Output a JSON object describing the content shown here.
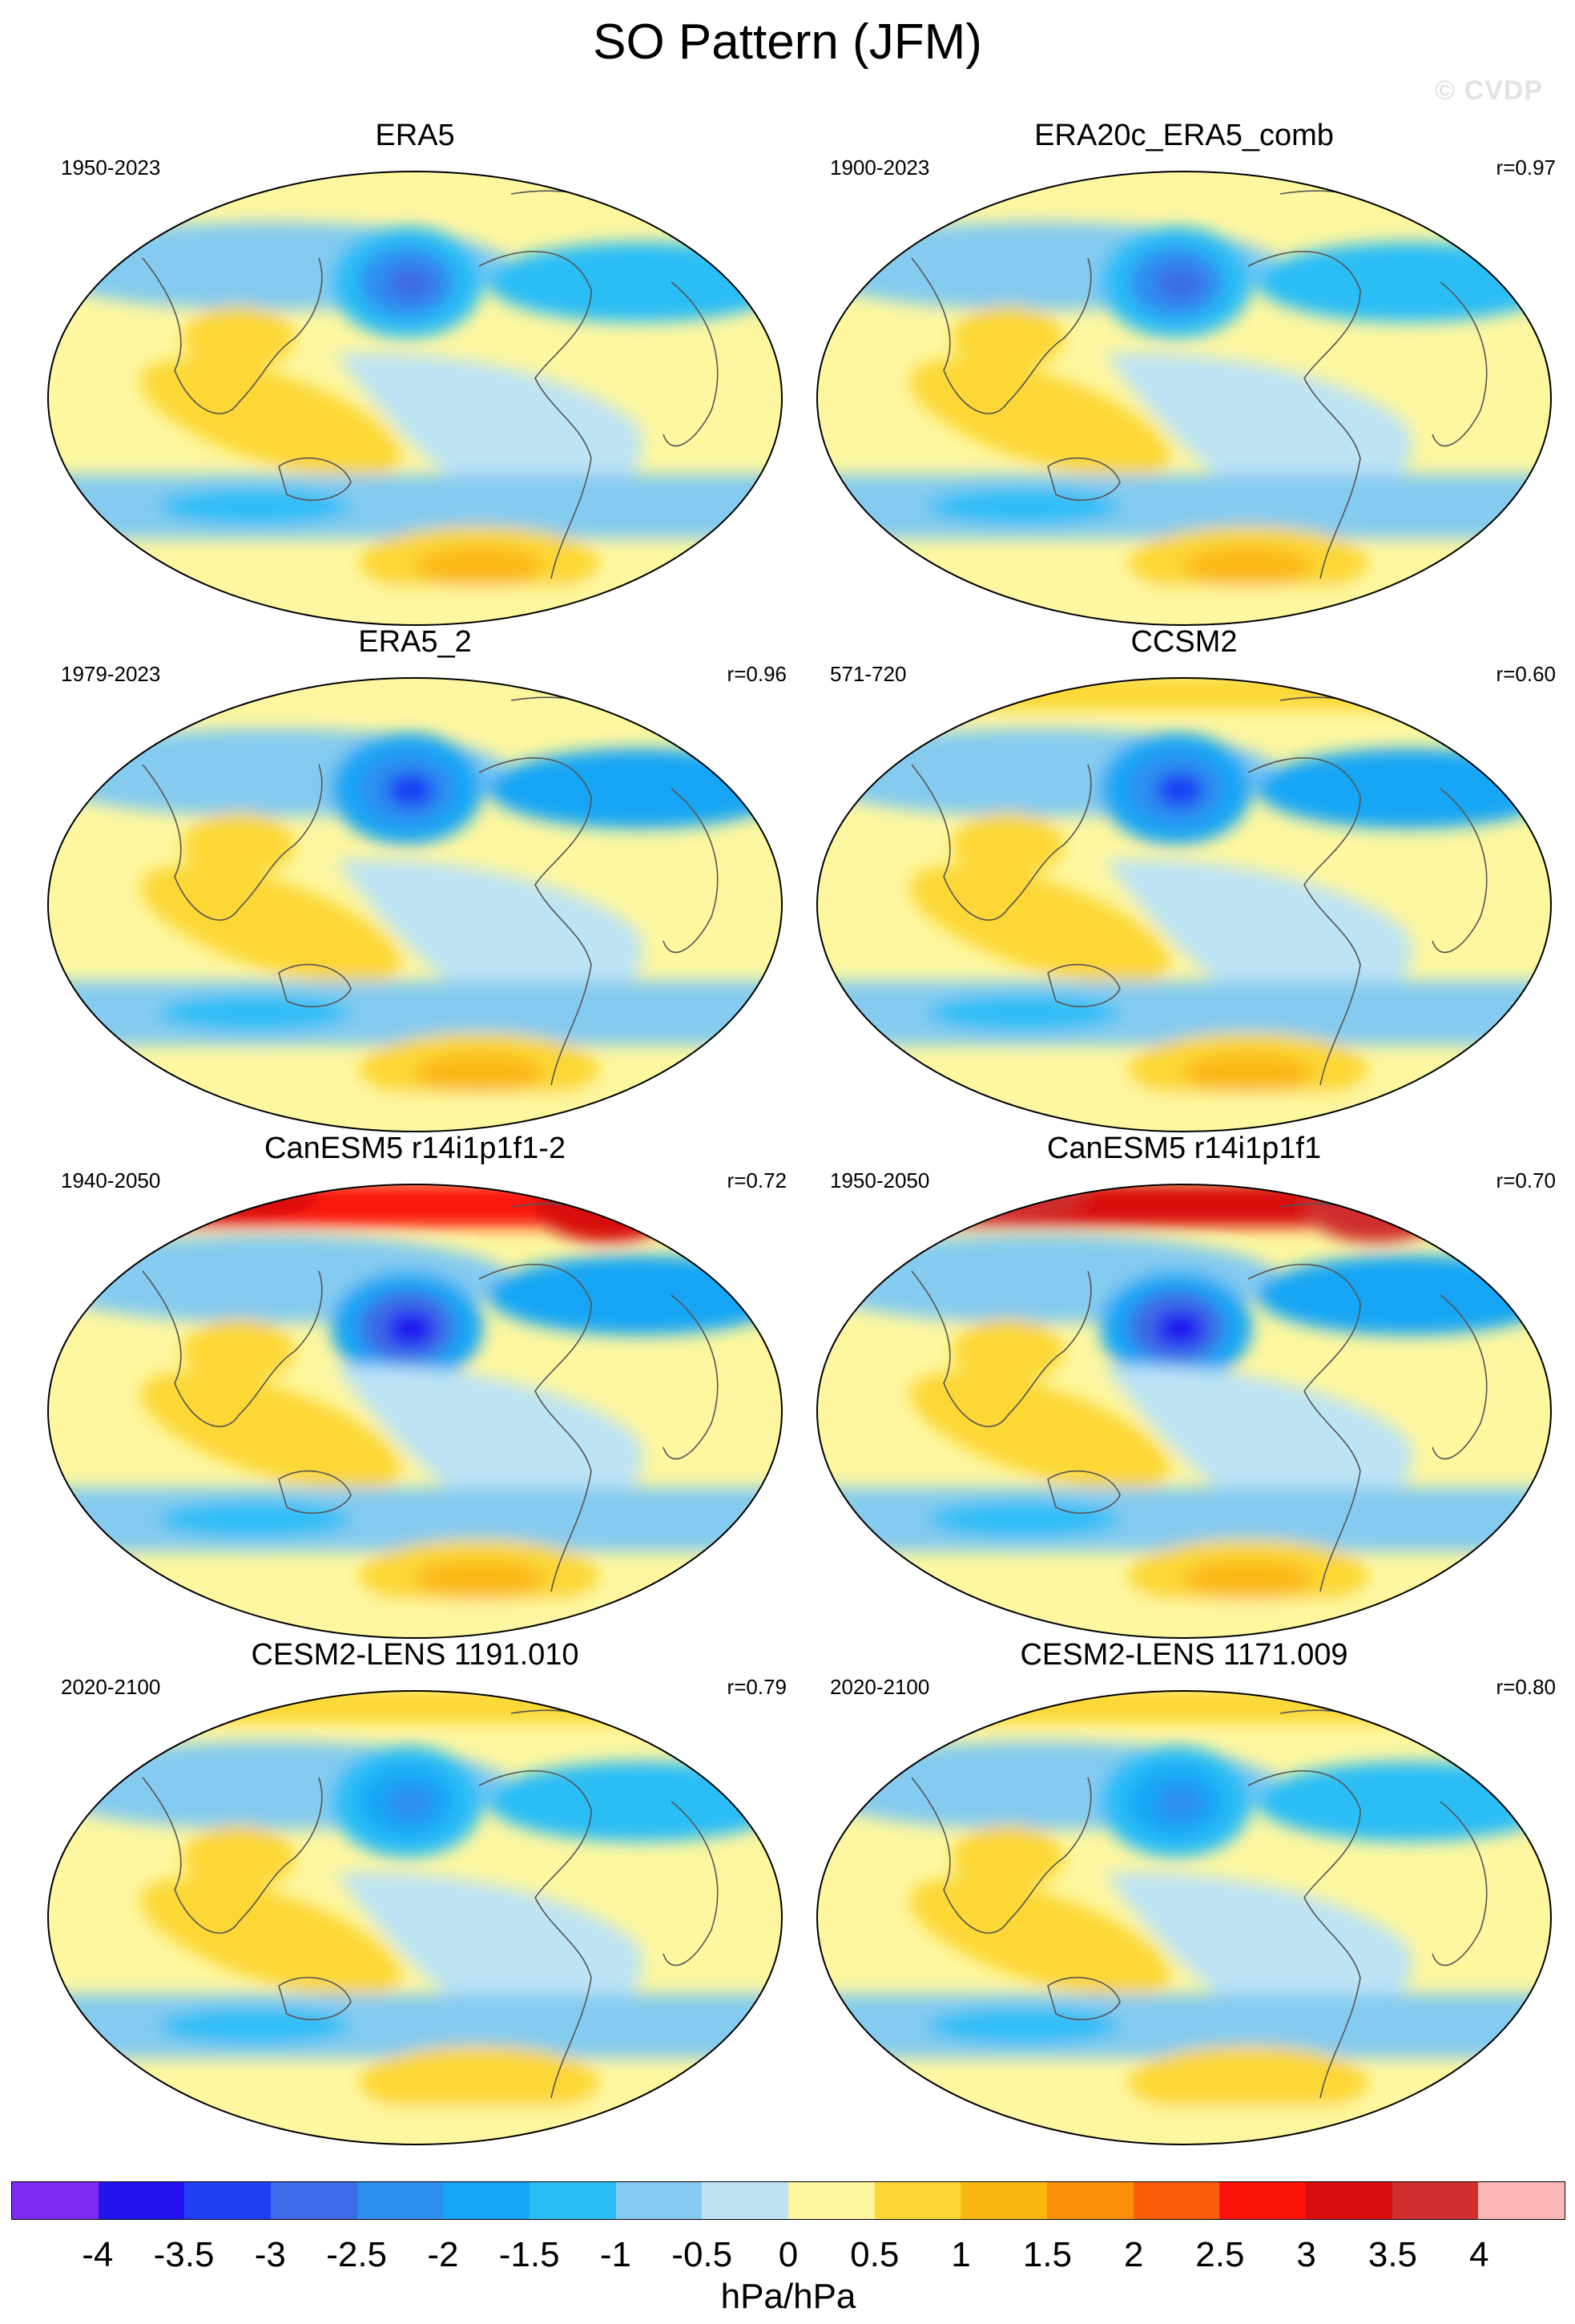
{
  "title": "SO Pattern (JFM)",
  "watermark": "© CVDP",
  "panels": [
    {
      "name": "ERA5",
      "period": "1950-2023",
      "r": ""
    },
    {
      "name": "ERA20c_ERA5_comb",
      "period": "1900-2023",
      "r": "r=0.97"
    },
    {
      "name": "ERA5_2",
      "period": "1979-2023",
      "r": "r=0.96"
    },
    {
      "name": "CCSM2",
      "period": "571-720",
      "r": "r=0.60"
    },
    {
      "name": "CanESM5 r14i1p1f1-2",
      "period": "1940-2050",
      "r": "r=0.72"
    },
    {
      "name": "CanESM5 r14i1p1f1",
      "period": "1950-2050",
      "r": "r=0.70"
    },
    {
      "name": "CESM2-LENS 1191.010",
      "period": "2020-2100",
      "r": "r=0.79"
    },
    {
      "name": "CESM2-LENS 1171.009",
      "period": "2020-2100",
      "r": "r=0.80"
    }
  ],
  "colorbar": {
    "colors": [
      "#7f2af2",
      "#2314f0",
      "#1f3ff2",
      "#3d6ae6",
      "#2e8ef0",
      "#16a6f5",
      "#2bbdf6",
      "#84cbef",
      "#bde3f4",
      "#fdf7a0",
      "#fcd734",
      "#fbb813",
      "#fb8e08",
      "#fb5e0a",
      "#fb1209",
      "#d80e0e",
      "#cf2f2f",
      "#feb7b7"
    ],
    "tick_labels": [
      "-4",
      "-3.5",
      "-3",
      "-2.5",
      "-2",
      "-1.5",
      "-1",
      "-0.5",
      "0",
      "0.5",
      "1",
      "1.5",
      "2",
      "2.5",
      "3",
      "3.5",
      "4"
    ],
    "units": "hPa/hPa"
  },
  "chart_data": {
    "type": "heatmap",
    "title": "SO Pattern (JFM)",
    "units": "hPa/hPa",
    "levels": [
      -4,
      -3.5,
      -3,
      -2.5,
      -2,
      -1.5,
      -1,
      -0.5,
      0,
      0.5,
      1,
      1.5,
      2,
      2.5,
      3,
      3.5,
      4
    ],
    "panels": [
      {
        "name": "ERA5",
        "period": "1950-2023",
        "r": null,
        "north_pacific_low": -2.5,
        "southern_ocean_high": 1.5,
        "arctic_high": 0.5
      },
      {
        "name": "ERA20c_ERA5_comb",
        "period": "1900-2023",
        "r": 0.97,
        "north_pacific_low": -2.5,
        "southern_ocean_high": 1.5,
        "arctic_high": 0.5
      },
      {
        "name": "ERA5_2",
        "period": "1979-2023",
        "r": 0.96,
        "north_pacific_low": -3.0,
        "southern_ocean_high": 1.5,
        "arctic_high": 0.5
      },
      {
        "name": "CCSM2",
        "period": "571-720",
        "r": 0.6,
        "north_pacific_low": -3.0,
        "southern_ocean_high": 1.5,
        "arctic_high": 1.0
      },
      {
        "name": "CanESM5 r14i1p1f1-2",
        "period": "1940-2050",
        "r": 0.72,
        "north_pacific_low": -3.5,
        "southern_ocean_high": 1.5,
        "arctic_high": 3.0
      },
      {
        "name": "CanESM5 r14i1p1f1",
        "period": "1950-2050",
        "r": 0.7,
        "north_pacific_low": -3.5,
        "southern_ocean_high": 1.5,
        "arctic_high": 3.5
      },
      {
        "name": "CESM2-LENS 1191.010",
        "period": "2020-2100",
        "r": 0.79,
        "north_pacific_low": -2.0,
        "southern_ocean_high": 1.0,
        "arctic_high": 1.0
      },
      {
        "name": "CESM2-LENS 1171.009",
        "period": "2020-2100",
        "r": 0.8,
        "north_pacific_low": -2.0,
        "southern_ocean_high": 1.0,
        "arctic_high": 1.0
      }
    ]
  }
}
